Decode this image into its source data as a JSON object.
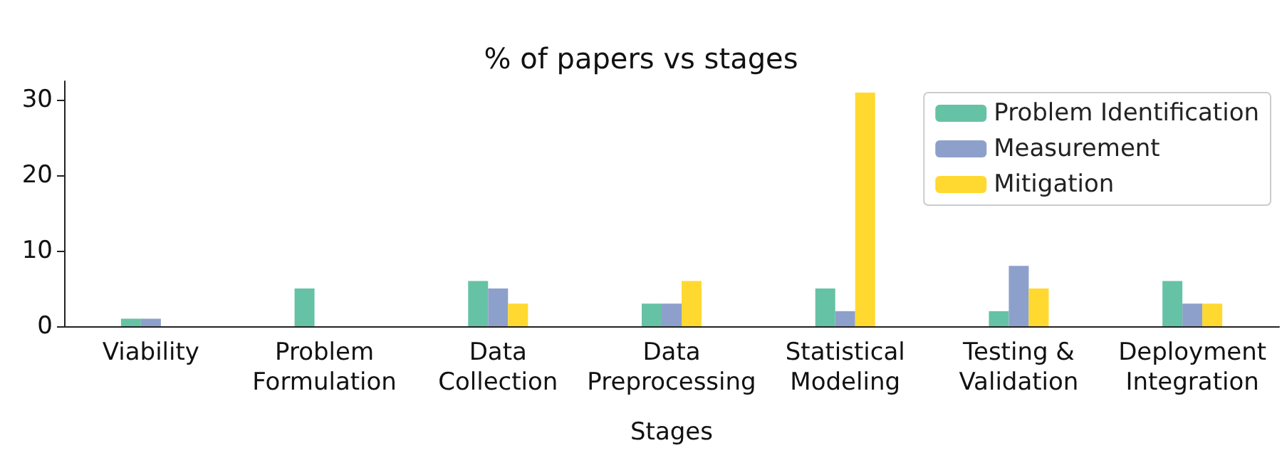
{
  "chart_data": {
    "type": "bar",
    "title": "% of papers vs stages",
    "xlabel": "Stages",
    "categories": [
      "Viability",
      "Problem\nFormulation",
      "Data\nCollection",
      "Data\nPreprocessing",
      "Statistical\nModeling",
      "Testing &\nValidation",
      "Deployment\nIntegration"
    ],
    "series": [
      {
        "name": "Problem Identification",
        "color": "#66c2a5",
        "values": [
          1,
          5,
          6,
          3,
          5,
          2,
          6
        ]
      },
      {
        "name": "Measurement",
        "color": "#8da0cb",
        "values": [
          1,
          0,
          5,
          3,
          2,
          8,
          3
        ]
      },
      {
        "name": "Mitigation",
        "color": "#ffd92f",
        "values": [
          0,
          0,
          3,
          6,
          31,
          5,
          3
        ]
      }
    ],
    "ylim": [
      0,
      32.5
    ],
    "yticks": [
      0,
      10,
      20,
      30
    ],
    "grid": false,
    "legend": "top right"
  }
}
